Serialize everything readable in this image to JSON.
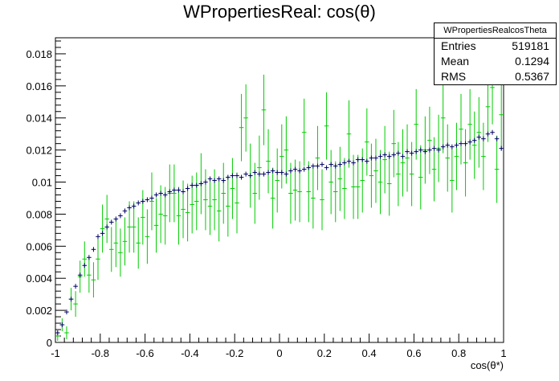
{
  "title": "WPropertiesReal: cos(θ)",
  "stats": {
    "name": "WPropertiesRealcosTheta",
    "rows": [
      {
        "label": "Entries",
        "value": "519181"
      },
      {
        "label": "Mean",
        "value": "0.1294"
      },
      {
        "label": "RMS",
        "value": "0.5367"
      }
    ]
  },
  "colors": {
    "mc": "#000066",
    "data": "#00cc00"
  },
  "chart_data": {
    "type": "scatter",
    "title": "WPropertiesReal: cos(θ)",
    "xlabel": "cos(θ*)",
    "ylabel": "",
    "xlim": [
      -1,
      1
    ],
    "ylim": [
      0,
      0.019
    ],
    "x_ticks": [
      "-1",
      "-0.8",
      "-0.6",
      "-0.4",
      "-0.2",
      "0",
      "0.2",
      "0.4",
      "0.6",
      "0.8",
      "1"
    ],
    "y_ticks": [
      "0",
      "0.002",
      "0.004",
      "0.006",
      "0.008",
      "0.01",
      "0.012",
      "0.014",
      "0.016",
      "0.018"
    ],
    "bin_width": 0.02,
    "x": [
      -0.99,
      -0.97,
      -0.95,
      -0.93,
      -0.91,
      -0.89,
      -0.87,
      -0.85,
      -0.83,
      -0.81,
      -0.79,
      -0.77,
      -0.75,
      -0.73,
      -0.71,
      -0.69,
      -0.67,
      -0.65,
      -0.63,
      -0.61,
      -0.59,
      -0.57,
      -0.55,
      -0.53,
      -0.51,
      -0.49,
      -0.47,
      -0.45,
      -0.43,
      -0.41,
      -0.39,
      -0.37,
      -0.35,
      -0.33,
      -0.31,
      -0.29,
      -0.27,
      -0.25,
      -0.23,
      -0.21,
      -0.19,
      -0.17,
      -0.15,
      -0.13,
      -0.11,
      -0.09,
      -0.07,
      -0.05,
      -0.03,
      -0.01,
      0.01,
      0.03,
      0.05,
      0.07,
      0.09,
      0.11,
      0.13,
      0.15,
      0.17,
      0.19,
      0.21,
      0.23,
      0.25,
      0.27,
      0.29,
      0.31,
      0.33,
      0.35,
      0.37,
      0.39,
      0.41,
      0.43,
      0.45,
      0.47,
      0.49,
      0.51,
      0.53,
      0.55,
      0.57,
      0.59,
      0.61,
      0.63,
      0.65,
      0.67,
      0.69,
      0.71,
      0.73,
      0.75,
      0.77,
      0.79,
      0.81,
      0.83,
      0.85,
      0.87,
      0.89,
      0.91,
      0.93,
      0.95,
      0.97,
      0.99
    ],
    "series": [
      {
        "values": [
          0.0006,
          0.0011,
          0.0019,
          0.0027,
          0.0035,
          0.0042,
          0.0048,
          0.0053,
          0.0058,
          0.0066,
          0.0068,
          0.0072,
          0.0075,
          0.0077,
          0.0079,
          0.0082,
          0.0084,
          0.0085,
          0.0087,
          0.0088,
          0.0089,
          0.009,
          0.0092,
          0.0093,
          0.0092,
          0.0094,
          0.0095,
          0.0095,
          0.0094,
          0.0096,
          0.0098,
          0.0098,
          0.0099,
          0.01,
          0.0102,
          0.0101,
          0.0102,
          0.0101,
          0.0103,
          0.0104,
          0.0104,
          0.0103,
          0.0105,
          0.0104,
          0.0106,
          0.0105,
          0.0105,
          0.0106,
          0.0107,
          0.0106,
          0.0106,
          0.0105,
          0.0107,
          0.0108,
          0.0107,
          0.0108,
          0.0109,
          0.011,
          0.011,
          0.0111,
          0.0109,
          0.0111,
          0.011,
          0.0111,
          0.0112,
          0.0113,
          0.0112,
          0.0114,
          0.0114,
          0.0113,
          0.0115,
          0.0115,
          0.0116,
          0.0117,
          0.0116,
          0.0117,
          0.0118,
          0.0116,
          0.0119,
          0.0118,
          0.0119,
          0.012,
          0.0119,
          0.012,
          0.0121,
          0.012,
          0.0122,
          0.0123,
          0.0122,
          0.0123,
          0.0124,
          0.0124,
          0.0125,
          0.0126,
          0.0128,
          0.0127,
          0.013,
          0.0131,
          0.0127,
          0.0121
        ]
      },
      {
        "values": [
          0.0004,
          0.0011,
          0.0006,
          0.0027,
          0.0024,
          0.0041,
          0.0052,
          0.0042,
          0.0039,
          0.0052,
          0.0071,
          0.0077,
          0.0058,
          0.0062,
          0.0056,
          0.0063,
          0.0072,
          0.0072,
          0.0062,
          0.0078,
          0.0066,
          0.0088,
          0.0073,
          0.008,
          0.0079,
          0.0093,
          0.0093,
          0.0079,
          0.0083,
          0.0081,
          0.0086,
          0.0088,
          0.0099,
          0.0089,
          0.0085,
          0.0089,
          0.0082,
          0.0093,
          0.0085,
          0.0096,
          0.0087,
          0.0134,
          0.014,
          0.0104,
          0.0093,
          0.0109,
          0.0145,
          0.0113,
          0.009,
          0.0101,
          0.0116,
          0.012,
          0.0093,
          0.0095,
          0.0094,
          0.0131,
          0.0094,
          0.009,
          0.0115,
          0.0089,
          0.0135,
          0.01,
          0.0094,
          0.0102,
          0.0096,
          0.013,
          0.0097,
          0.0097,
          0.0101,
          0.0125,
          0.0104,
          0.0107,
          0.01,
          0.0114,
          0.0099,
          0.0124,
          0.0105,
          0.0112,
          0.0115,
          0.0105,
          0.0136,
          0.0103,
          0.012,
          0.0126,
          0.0108,
          0.0121,
          0.014,
          0.0115,
          0.0101,
          0.0116,
          0.0133,
          0.0112,
          0.0136,
          0.0123,
          0.0131,
          0.0116,
          0.0147,
          0.0159,
          0.0108,
          0.0142
        ],
        "errors": [
          0.0003,
          0.0004,
          0.0004,
          0.0007,
          0.0008,
          0.001,
          0.0011,
          0.0011,
          0.0011,
          0.0013,
          0.0015,
          0.0015,
          0.0014,
          0.0015,
          0.0015,
          0.0015,
          0.0016,
          0.0016,
          0.0016,
          0.0017,
          0.0017,
          0.0018,
          0.0017,
          0.0018,
          0.0018,
          0.0018,
          0.0018,
          0.0018,
          0.0018,
          0.0018,
          0.0018,
          0.0018,
          0.0019,
          0.0019,
          0.0018,
          0.0019,
          0.0019,
          0.0019,
          0.0019,
          0.0019,
          0.0019,
          0.0021,
          0.0021,
          0.002,
          0.0019,
          0.002,
          0.0022,
          0.002,
          0.0019,
          0.002,
          0.002,
          0.0021,
          0.0019,
          0.0019,
          0.0019,
          0.0021,
          0.0019,
          0.0019,
          0.002,
          0.0019,
          0.0021,
          0.002,
          0.0019,
          0.002,
          0.0019,
          0.0021,
          0.002,
          0.002,
          0.002,
          0.0021,
          0.002,
          0.002,
          0.002,
          0.0021,
          0.002,
          0.0021,
          0.002,
          0.0021,
          0.0021,
          0.002,
          0.0022,
          0.002,
          0.0021,
          0.0021,
          0.002,
          0.0021,
          0.0022,
          0.0021,
          0.002,
          0.0021,
          0.0022,
          0.0021,
          0.0022,
          0.0021,
          0.0022,
          0.0021,
          0.0022,
          0.0023,
          0.0021,
          0.0022
        ]
      }
    ]
  }
}
